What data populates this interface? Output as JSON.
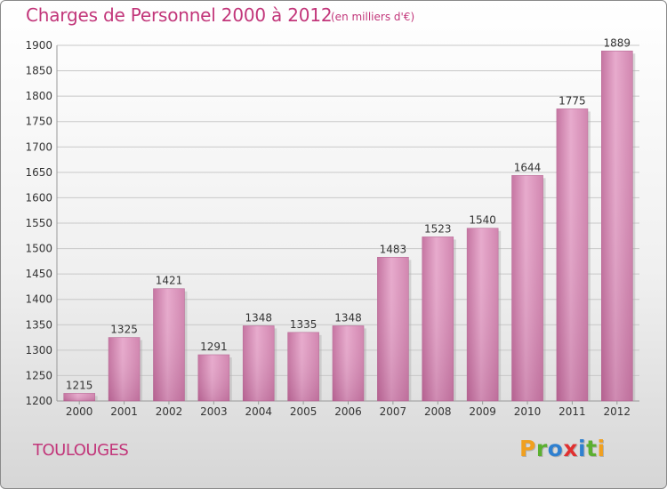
{
  "title": "Charges de Personnel 2000 à 2012",
  "subtitle": "(en milliers d'€)",
  "town": "TOULOUGES",
  "logo": {
    "p": "P",
    "r": "r",
    "o": "o",
    "x": "x",
    "i": "i",
    "t": "t",
    "i2": "i"
  },
  "colors": {
    "bar": "#d889b6",
    "title": "#c2367a"
  },
  "chart_data": {
    "type": "bar",
    "title": "Charges de Personnel 2000 à 2012",
    "subtitle": "(en milliers d'€)",
    "categories": [
      "2000",
      "2001",
      "2002",
      "2003",
      "2004",
      "2005",
      "2006",
      "2007",
      "2008",
      "2009",
      "2010",
      "2011",
      "2012"
    ],
    "values": [
      1215,
      1325,
      1421,
      1291,
      1348,
      1335,
      1348,
      1483,
      1523,
      1540,
      1644,
      1775,
      1889
    ],
    "ylim": [
      1200,
      1900
    ],
    "yticks": [
      1200,
      1250,
      1300,
      1350,
      1400,
      1450,
      1500,
      1550,
      1600,
      1650,
      1700,
      1750,
      1800,
      1850,
      1900
    ],
    "grid": true,
    "xlabel": "",
    "ylabel": ""
  }
}
